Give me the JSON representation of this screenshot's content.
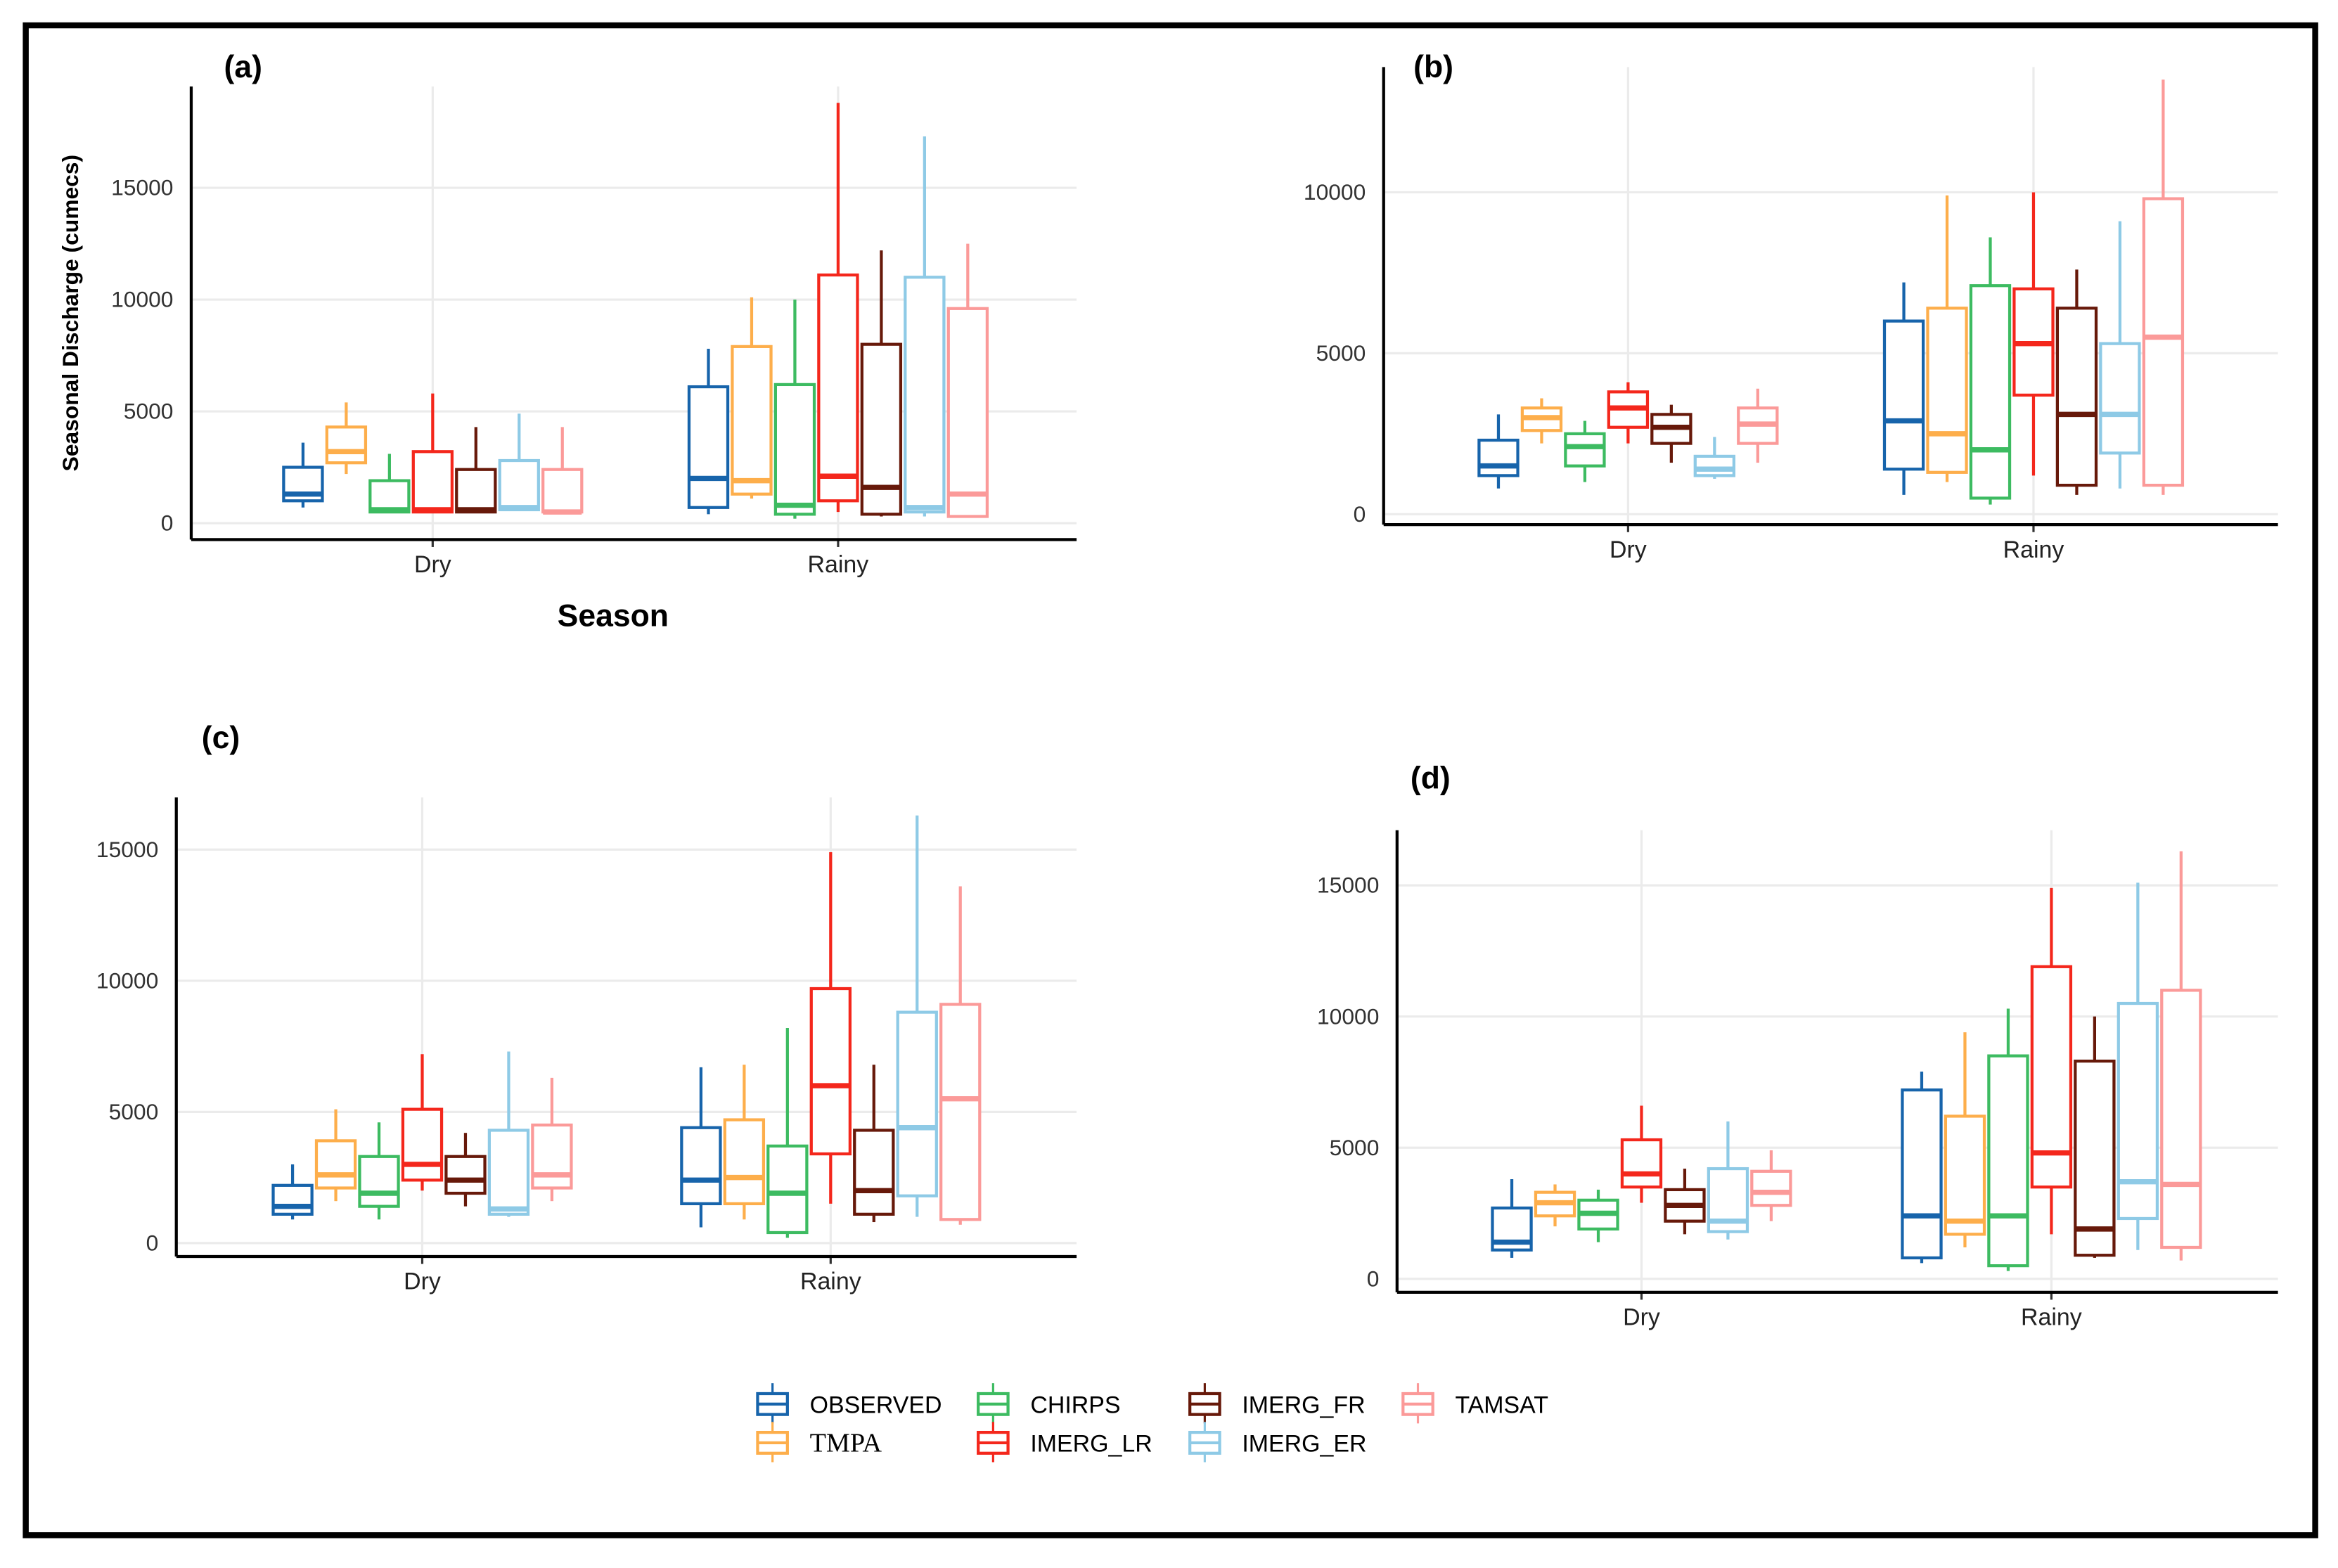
{
  "colors": {
    "OBSERVED": "#1764ab",
    "TMPA": "#fdae4b",
    "CHIRPS": "#3dbb61",
    "IMERG_LR": "#f4271c",
    "IMERG_FR": "#67190a",
    "IMERG_ER": "#8ecae6",
    "TAMSAT": "#fb9a99"
  },
  "legend": {
    "items": [
      "OBSERVED",
      "CHIRPS",
      "IMERG_FR",
      "TAMSAT",
      "TMPA",
      "IMERG_LR",
      "IMERG_ER"
    ]
  },
  "chart_data": [
    {
      "type": "box",
      "panel_label": "(a)",
      "ylabel": "Seasonal  Discharge (cumecs)",
      "xlabel": "Season",
      "categories": [
        "Dry",
        "Rainy"
      ],
      "yticks": [
        0,
        5000,
        10000,
        15000
      ],
      "grid": true,
      "series": [
        {
          "name": "OBSERVED",
          "stats": [
            [
              700,
              1000,
              1300,
              2500,
              3600
            ],
            [
              400,
              700,
              2000,
              6100,
              7800
            ]
          ]
        },
        {
          "name": "TMPA",
          "stats": [
            [
              2200,
              2700,
              3200,
              4300,
              5400
            ],
            [
              1100,
              1300,
              1900,
              7900,
              10100
            ]
          ]
        },
        {
          "name": "CHIRPS",
          "stats": [
            [
              500,
              500,
              600,
              1900,
              3100
            ],
            [
              200,
              400,
              800,
              6200,
              10000
            ]
          ]
        },
        {
          "name": "IMERG_LR",
          "stats": [
            [
              500,
              500,
              600,
              3200,
              5800
            ],
            [
              500,
              1000,
              2100,
              11100,
              18800
            ]
          ]
        },
        {
          "name": "IMERG_FR",
          "stats": [
            [
              500,
              500,
              600,
              2400,
              4300
            ],
            [
              300,
              400,
              1600,
              8000,
              12200
            ]
          ]
        },
        {
          "name": "IMERG_ER",
          "stats": [
            [
              600,
              600,
              700,
              2800,
              4900
            ],
            [
              300,
              500,
              700,
              11000,
              17300
            ]
          ]
        },
        {
          "name": "TAMSAT",
          "stats": [
            [
              500,
              500,
              500,
              2400,
              4300
            ],
            [
              300,
              300,
              1300,
              9600,
              12500
            ]
          ]
        }
      ]
    },
    {
      "type": "box",
      "panel_label": "(b)",
      "categories": [
        "Dry",
        "Rainy"
      ],
      "yticks": [
        0,
        5000,
        10000
      ],
      "grid": true,
      "series": [
        {
          "name": "OBSERVED",
          "stats": [
            [
              800,
              1200,
              1500,
              2300,
              3100
            ],
            [
              600,
              1400,
              2900,
              6000,
              7200
            ]
          ]
        },
        {
          "name": "TMPA",
          "stats": [
            [
              2200,
              2600,
              3000,
              3300,
              3600
            ],
            [
              1000,
              1300,
              2500,
              6400,
              9900
            ]
          ]
        },
        {
          "name": "CHIRPS",
          "stats": [
            [
              1000,
              1500,
              2100,
              2500,
              2900
            ],
            [
              300,
              500,
              2000,
              7100,
              8600
            ]
          ]
        },
        {
          "name": "IMERG_LR",
          "stats": [
            [
              2200,
              2700,
              3300,
              3800,
              4100
            ],
            [
              1200,
              3700,
              5300,
              7000,
              10000
            ]
          ]
        },
        {
          "name": "IMERG_FR",
          "stats": [
            [
              1600,
              2200,
              2700,
              3100,
              3400
            ],
            [
              600,
              900,
              3100,
              6400,
              7600
            ]
          ]
        },
        {
          "name": "IMERG_ER",
          "stats": [
            [
              1100,
              1200,
              1400,
              1800,
              2400
            ],
            [
              800,
              1900,
              3100,
              5300,
              9100
            ]
          ]
        },
        {
          "name": "TAMSAT",
          "stats": [
            [
              1600,
              2200,
              2800,
              3300,
              3900
            ],
            [
              600,
              900,
              5500,
              9800,
              13500
            ]
          ]
        }
      ]
    },
    {
      "type": "box",
      "panel_label": "(c)",
      "categories": [
        "Dry",
        "Rainy"
      ],
      "yticks": [
        0,
        5000,
        10000,
        15000
      ],
      "grid": true,
      "series": [
        {
          "name": "OBSERVED",
          "stats": [
            [
              900,
              1100,
              1400,
              2200,
              3000
            ],
            [
              600,
              1500,
              2400,
              4400,
              6700
            ]
          ]
        },
        {
          "name": "TMPA",
          "stats": [
            [
              1600,
              2100,
              2600,
              3900,
              5100
            ],
            [
              900,
              1500,
              2500,
              4700,
              6800
            ]
          ]
        },
        {
          "name": "CHIRPS",
          "stats": [
            [
              900,
              1400,
              1900,
              3300,
              4600
            ],
            [
              200,
              400,
              1900,
              3700,
              8200
            ]
          ]
        },
        {
          "name": "IMERG_LR",
          "stats": [
            [
              2000,
              2400,
              3000,
              5100,
              7200
            ],
            [
              1500,
              3400,
              6000,
              9700,
              14900
            ]
          ]
        },
        {
          "name": "IMERG_FR",
          "stats": [
            [
              1400,
              1900,
              2400,
              3300,
              4200
            ],
            [
              800,
              1100,
              2000,
              4300,
              6800
            ]
          ]
        },
        {
          "name": "IMERG_ER",
          "stats": [
            [
              1000,
              1100,
              1300,
              4300,
              7300
            ],
            [
              1000,
              1800,
              4400,
              8800,
              16300
            ]
          ]
        },
        {
          "name": "TAMSAT",
          "stats": [
            [
              1600,
              2100,
              2600,
              4500,
              6300
            ],
            [
              700,
              900,
              5500,
              9100,
              13600
            ]
          ]
        }
      ]
    },
    {
      "type": "box",
      "panel_label": "(d)",
      "categories": [
        "Dry",
        "Rainy"
      ],
      "yticks": [
        0,
        5000,
        10000,
        15000
      ],
      "grid": true,
      "series": [
        {
          "name": "OBSERVED",
          "stats": [
            [
              800,
              1100,
              1400,
              2700,
              3800
            ],
            [
              600,
              800,
              2400,
              7200,
              7900
            ]
          ]
        },
        {
          "name": "TMPA",
          "stats": [
            [
              2000,
              2400,
              2900,
              3300,
              3600
            ],
            [
              1200,
              1700,
              2200,
              6200,
              9400
            ]
          ]
        },
        {
          "name": "CHIRPS",
          "stats": [
            [
              1400,
              1900,
              2500,
              3000,
              3400
            ],
            [
              300,
              500,
              2400,
              8500,
              10300
            ]
          ]
        },
        {
          "name": "IMERG_LR",
          "stats": [
            [
              2900,
              3500,
              4000,
              5300,
              6600
            ],
            [
              1700,
              3500,
              4800,
              11900,
              14900
            ]
          ]
        },
        {
          "name": "IMERG_FR",
          "stats": [
            [
              1700,
              2200,
              2800,
              3400,
              4200
            ],
            [
              800,
              900,
              1900,
              8300,
              10000
            ]
          ]
        },
        {
          "name": "IMERG_ER",
          "stats": [
            [
              1500,
              1800,
              2200,
              4200,
              6000
            ],
            [
              1100,
              2300,
              3700,
              10500,
              15100
            ]
          ]
        },
        {
          "name": "TAMSAT",
          "stats": [
            [
              2200,
              2800,
              3300,
              4100,
              4900
            ],
            [
              700,
              1200,
              3600,
              11000,
              16300
            ]
          ]
        }
      ]
    }
  ]
}
